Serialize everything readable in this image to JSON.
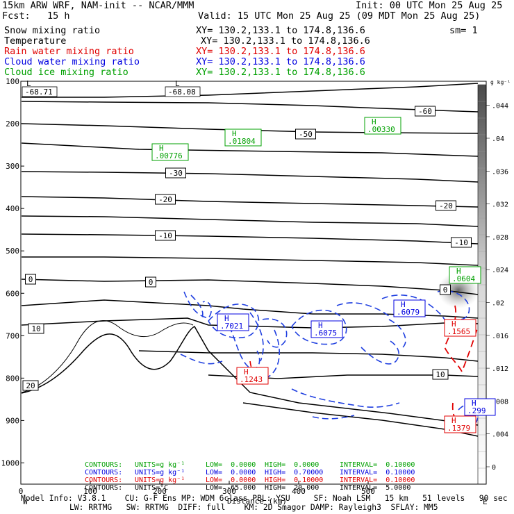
{
  "header": {
    "model": "15km ARW WRF, NAM-init -- NCAR/MMM",
    "init": "Init: 00 UTC Mon 25 Aug 25",
    "fcst": "Fcst:   15 h",
    "valid": "Valid: 15 UTC Mon 25 Aug 25 (09 MDT Mon 25 Aug 25)",
    "rows": [
      {
        "label": "Snow mixing ratio",
        "xy": "XY= 130.2,133.1 to 174.8,136.6",
        "extra": "sm= 1",
        "color": "#000000"
      },
      {
        "label": "Temperature",
        "xy": "XY= 130.2,133.1 to 174.8,136.6",
        "extra": "",
        "color": "#000000"
      },
      {
        "label": "Rain water mixing ratio",
        "xy": "XY= 130.2,133.1 to 174.8,136.6",
        "extra": "",
        "color": "#e00000"
      },
      {
        "label": "Cloud water mixing ratio",
        "xy": "XY= 130.2,133.1 to 174.8,136.6",
        "extra": "",
        "color": "#0000e0"
      },
      {
        "label": "Cloud ice mixing ratio",
        "xy": "XY= 130.2,133.1 to 174.8,136.6",
        "extra": "",
        "color": "#00a000"
      }
    ]
  },
  "chart_data": {
    "type": "cross-section",
    "y_tick_labels": [
      "100",
      "200",
      "300",
      "400",
      "500",
      "600",
      "700",
      "800",
      "900",
      "1000"
    ],
    "x_tick_labels": [
      "0",
      "100",
      "200",
      "300",
      "400",
      "500"
    ],
    "x_axis_label": "Distance (km)",
    "x_end_labels": [
      "W",
      "E"
    ],
    "colorbar": {
      "units": "g kg⁻¹",
      "tick_labels": [
        "0",
        ".004",
        ".008",
        ".012",
        ".016",
        ".02",
        ".024",
        ".028",
        ".032",
        ".036",
        ".04",
        ".044"
      ]
    },
    "temperature_labels": [
      "-60",
      "-50",
      "-30",
      "-20",
      "-20",
      "-10",
      "-10",
      "0",
      "0",
      "0",
      "10",
      "10",
      "20"
    ],
    "temperature_extrema": [
      {
        "kind": "L",
        "value": "-68.71"
      },
      {
        "kind": "L",
        "value": "-68.08"
      }
    ],
    "cloud_ice_highs": [
      ".01804",
      ".00776",
      ".00330",
      ".0604"
    ],
    "cloud_water_highs": [
      ".7021",
      ".6075",
      ".6079",
      ".299"
    ],
    "rain_highs": [
      ".1243",
      ".1565",
      ".1379"
    ]
  },
  "contour_legend": [
    {
      "contours": "CONTOURS:",
      "units": "UNITS=g kg⁻¹",
      "low": "LOW=  0.0000",
      "high": "HIGH=  0.0000",
      "interval": "INTERVAL=  0.10000",
      "color": "#00a000"
    },
    {
      "contours": "CONTOURS:",
      "units": "UNITS=g kg⁻¹",
      "low": "LOW=  0.0000",
      "high": "HIGH=  0.70000",
      "interval": "INTERVAL=  0.10000",
      "color": "#0000e0"
    },
    {
      "contours": "CONTOURS:",
      "units": "UNITS=g kg⁻¹",
      "low": "LOW=  0.0000",
      "high": "HIGH=  0.10000",
      "interval": "INTERVAL=  0.10000",
      "color": "#e00000"
    },
    {
      "contours": "CONTOURS:",
      "units": "UNITS=°C",
      "low": "LOW= -65.000",
      "high": "HIGH=  20.000",
      "interval": "INTERVAL=  5.0000",
      "color": "#000000"
    }
  ],
  "footer": {
    "line1": "Model Info: V3.8.1    CU: G-F Ens MP: WDM 6class PBL: YSU     SF: Noah LSM   15 km   51 levels   90 sec",
    "line2": "LW: RRTMG   SW: RRTMG  DIFF: full    KM: 2D Smagor DAMP: Rayleigh3  SFLAY: MM5"
  }
}
